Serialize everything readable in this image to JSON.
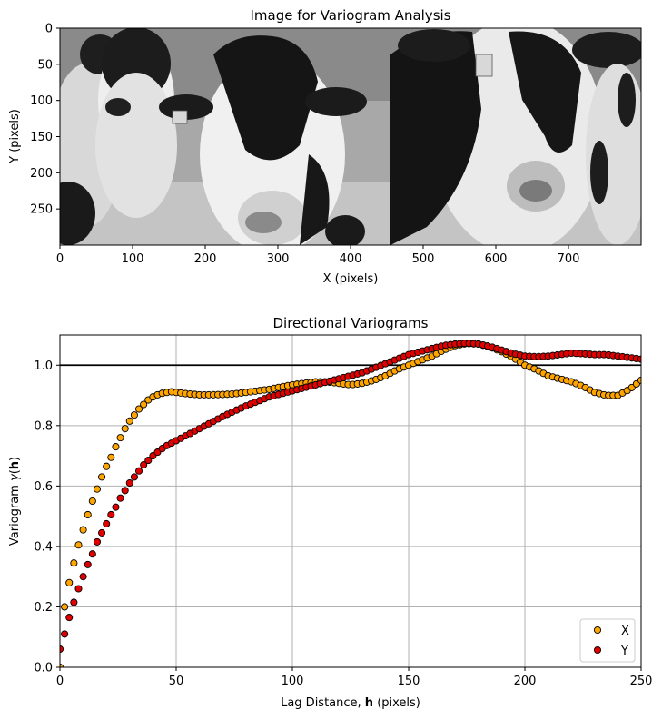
{
  "chart_data": [
    {
      "type": "image",
      "title": "Image for Variogram Analysis",
      "xlabel": "X (pixels)",
      "ylabel": "Y (pixels)",
      "xlim": [
        0,
        800
      ],
      "ylim": [
        300,
        0
      ],
      "xticks": [
        0,
        100,
        200,
        300,
        400,
        500,
        600,
        700
      ],
      "yticks": [
        0,
        50,
        100,
        150,
        200,
        250
      ],
      "colormap": "grayscale",
      "content": "grayscale photograph of black-and-white Holstein cows",
      "ear_tags": [
        {
          "x": 198,
          "y": 128
        },
        {
          "x": 533,
          "y": 55
        }
      ]
    },
    {
      "type": "scatter",
      "title": "Directional Variograms",
      "xlabel": "Lag Distance, h (pixels)",
      "xlabel_parts": [
        "Lag Distance, ",
        "h",
        " (pixels)"
      ],
      "ylabel": "Variogram γ(h)",
      "ylabel_parts": [
        "Variogram ",
        "γ",
        "(",
        "h",
        ")"
      ],
      "xlim": [
        0,
        250
      ],
      "ylim": [
        0,
        1.1
      ],
      "xticks": [
        0,
        50,
        100,
        150,
        200,
        250
      ],
      "yticks": [
        0.0,
        0.2,
        0.4,
        0.6,
        0.8,
        1.0
      ],
      "xtick_labels": [
        "0",
        "50",
        "100",
        "150",
        "200",
        "250"
      ],
      "ytick_labels": [
        "0.0",
        "0.2",
        "0.4",
        "0.6",
        "0.8",
        "1.0"
      ],
      "grid": true,
      "sill_line": 1.0,
      "legend_position": "lower-right",
      "lag_step": 2,
      "series": [
        {
          "name": "X",
          "color": "#FFA500",
          "anchors": [
            [
              0,
              0.0
            ],
            [
              2,
              0.2
            ],
            [
              4,
              0.28
            ],
            [
              6,
              0.345
            ],
            [
              8,
              0.405
            ],
            [
              10,
              0.455
            ],
            [
              12,
              0.505
            ],
            [
              14,
              0.55
            ],
            [
              16,
              0.59
            ],
            [
              18,
              0.63
            ],
            [
              20,
              0.665
            ],
            [
              22,
              0.695
            ],
            [
              24,
              0.73
            ],
            [
              26,
              0.76
            ],
            [
              28,
              0.79
            ],
            [
              30,
              0.815
            ],
            [
              32,
              0.835
            ],
            [
              34,
              0.855
            ],
            [
              36,
              0.87
            ],
            [
              38,
              0.885
            ],
            [
              40,
              0.895
            ],
            [
              42,
              0.902
            ],
            [
              44,
              0.907
            ],
            [
              46,
              0.91
            ],
            [
              48,
              0.912
            ],
            [
              50,
              0.91
            ],
            [
              55,
              0.905
            ],
            [
              60,
              0.902
            ],
            [
              65,
              0.902
            ],
            [
              70,
              0.903
            ],
            [
              75,
              0.905
            ],
            [
              80,
              0.91
            ],
            [
              85,
              0.915
            ],
            [
              90,
              0.92
            ],
            [
              95,
              0.928
            ],
            [
              100,
              0.935
            ],
            [
              105,
              0.94
            ],
            [
              110,
              0.945
            ],
            [
              115,
              0.945
            ],
            [
              120,
              0.94
            ],
            [
              125,
              0.935
            ],
            [
              130,
              0.94
            ],
            [
              135,
              0.95
            ],
            [
              140,
              0.965
            ],
            [
              145,
              0.985
            ],
            [
              150,
              1.0
            ],
            [
              155,
              1.015
            ],
            [
              160,
              1.03
            ],
            [
              165,
              1.05
            ],
            [
              170,
              1.065
            ],
            [
              175,
              1.072
            ],
            [
              180,
              1.07
            ],
            [
              185,
              1.06
            ],
            [
              190,
              1.045
            ],
            [
              195,
              1.025
            ],
            [
              200,
              1.0
            ],
            [
              205,
              0.985
            ],
            [
              210,
              0.965
            ],
            [
              215,
              0.955
            ],
            [
              220,
              0.945
            ],
            [
              225,
              0.93
            ],
            [
              230,
              0.91
            ],
            [
              235,
              0.9
            ],
            [
              240,
              0.9
            ],
            [
              245,
              0.92
            ],
            [
              250,
              0.95
            ]
          ]
        },
        {
          "name": "Y",
          "color": "#E00000",
          "anchors": [
            [
              0,
              0.06
            ],
            [
              2,
              0.11
            ],
            [
              4,
              0.165
            ],
            [
              6,
              0.215
            ],
            [
              8,
              0.26
            ],
            [
              10,
              0.3
            ],
            [
              12,
              0.34
            ],
            [
              14,
              0.375
            ],
            [
              16,
              0.415
            ],
            [
              18,
              0.445
            ],
            [
              20,
              0.475
            ],
            [
              22,
              0.505
            ],
            [
              24,
              0.53
            ],
            [
              26,
              0.56
            ],
            [
              28,
              0.585
            ],
            [
              30,
              0.61
            ],
            [
              32,
              0.63
            ],
            [
              34,
              0.65
            ],
            [
              36,
              0.67
            ],
            [
              38,
              0.685
            ],
            [
              40,
              0.7
            ],
            [
              45,
              0.73
            ],
            [
              50,
              0.75
            ],
            [
              55,
              0.77
            ],
            [
              60,
              0.79
            ],
            [
              65,
              0.81
            ],
            [
              70,
              0.83
            ],
            [
              75,
              0.848
            ],
            [
              80,
              0.865
            ],
            [
              85,
              0.88
            ],
            [
              90,
              0.895
            ],
            [
              95,
              0.905
            ],
            [
              100,
              0.915
            ],
            [
              105,
              0.925
            ],
            [
              110,
              0.935
            ],
            [
              115,
              0.945
            ],
            [
              120,
              0.955
            ],
            [
              125,
              0.965
            ],
            [
              130,
              0.975
            ],
            [
              135,
              0.99
            ],
            [
              140,
              1.005
            ],
            [
              145,
              1.02
            ],
            [
              150,
              1.035
            ],
            [
              155,
              1.045
            ],
            [
              160,
              1.055
            ],
            [
              165,
              1.065
            ],
            [
              170,
              1.07
            ],
            [
              175,
              1.073
            ],
            [
              180,
              1.07
            ],
            [
              185,
              1.062
            ],
            [
              190,
              1.05
            ],
            [
              195,
              1.038
            ],
            [
              200,
              1.03
            ],
            [
              205,
              1.028
            ],
            [
              210,
              1.03
            ],
            [
              215,
              1.035
            ],
            [
              220,
              1.04
            ],
            [
              225,
              1.038
            ],
            [
              230,
              1.035
            ],
            [
              235,
              1.035
            ],
            [
              240,
              1.03
            ],
            [
              245,
              1.025
            ],
            [
              250,
              1.02
            ]
          ]
        }
      ]
    }
  ],
  "colors": {
    "axis": "#000000",
    "grid": "#b0b0b0",
    "marker_edge": "#000000",
    "sill": "#000000"
  }
}
